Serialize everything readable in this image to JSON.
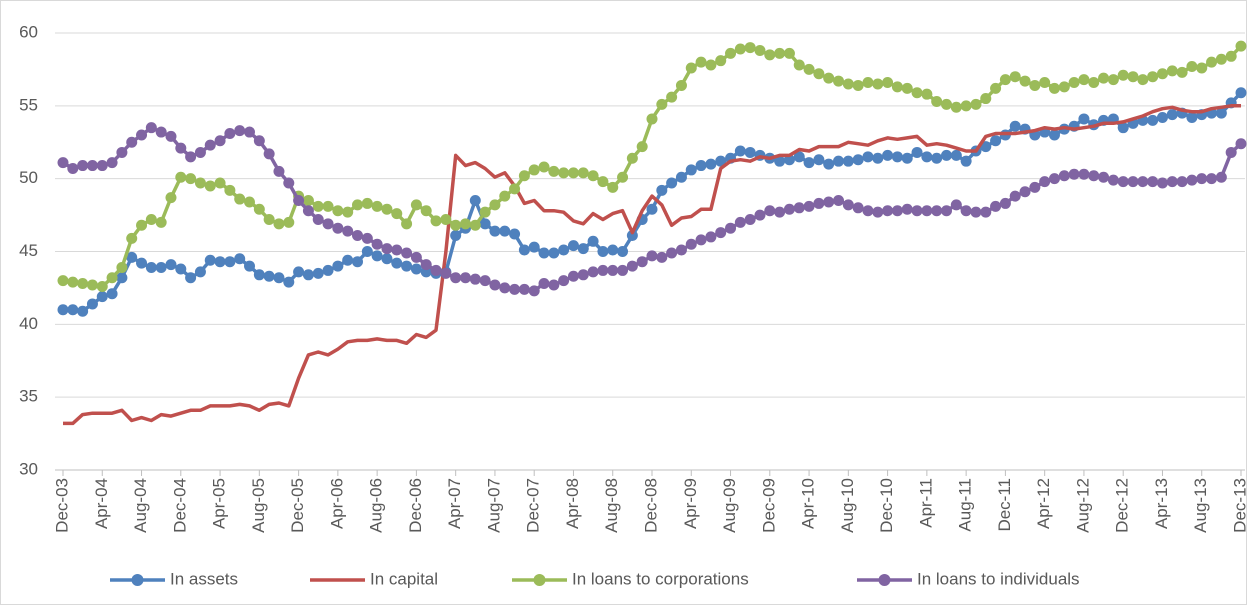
{
  "chart_data": {
    "type": "line",
    "categories": [
      "Dec-03",
      null,
      null,
      null,
      "Apr-04",
      null,
      null,
      null,
      "Aug-04",
      null,
      null,
      null,
      "Dec-04",
      null,
      null,
      null,
      "Apr-05",
      null,
      null,
      null,
      "Aug-05",
      null,
      null,
      null,
      "Dec-05",
      null,
      null,
      null,
      "Apr-06",
      null,
      null,
      null,
      "Aug-06",
      null,
      null,
      null,
      "Dec-06",
      null,
      null,
      null,
      "Apr-07",
      null,
      null,
      null,
      "Aug-07",
      null,
      null,
      null,
      "Dec-07",
      null,
      null,
      null,
      "Apr-08",
      null,
      null,
      null,
      "Aug-08",
      null,
      null,
      null,
      "Dec-08",
      null,
      null,
      null,
      "Apr-09",
      null,
      null,
      null,
      "Aug-09",
      null,
      null,
      null,
      "Dec-09",
      null,
      null,
      null,
      "Apr-10",
      null,
      null,
      null,
      "Aug-10",
      null,
      null,
      null,
      "Dec-10",
      null,
      null,
      null,
      "Apr-11",
      null,
      null,
      null,
      "Aug-11",
      null,
      null,
      null,
      "Dec-11",
      null,
      null,
      null,
      "Apr-12",
      null,
      null,
      null,
      "Aug-12",
      null,
      null,
      null,
      "Dec-12",
      null,
      null,
      null,
      "Apr-13",
      null,
      null,
      null,
      "Aug-13",
      null,
      null,
      null,
      "Dec-13"
    ],
    "series": [
      {
        "name": "In assets",
        "color": "#4f81bd",
        "markers": true,
        "values": [
          41.0,
          41.0,
          40.9,
          41.4,
          41.9,
          42.1,
          43.2,
          44.6,
          44.2,
          43.9,
          43.9,
          44.1,
          43.8,
          43.2,
          43.6,
          44.4,
          44.3,
          44.3,
          44.5,
          44.0,
          43.4,
          43.3,
          43.2,
          42.9,
          43.6,
          43.4,
          43.5,
          43.7,
          44.0,
          44.4,
          44.3,
          45.0,
          44.7,
          44.5,
          44.2,
          44.0,
          43.8,
          43.6,
          43.5,
          43.6,
          46.1,
          46.6,
          48.5,
          46.9,
          46.4,
          46.4,
          46.2,
          45.1,
          45.3,
          44.9,
          44.9,
          45.1,
          45.4,
          45.2,
          45.7,
          45.0,
          45.1,
          45.0,
          46.1,
          47.2,
          47.9,
          49.2,
          49.7,
          50.1,
          50.6,
          50.9,
          51.0,
          51.2,
          51.4,
          51.9,
          51.8,
          51.6,
          51.4,
          51.2,
          51.3,
          51.5,
          51.1,
          51.3,
          51.0,
          51.2,
          51.2,
          51.3,
          51.5,
          51.4,
          51.6,
          51.5,
          51.4,
          51.8,
          51.5,
          51.4,
          51.6,
          51.6,
          51.2,
          51.9,
          52.2,
          52.6,
          53.0,
          53.6,
          53.4,
          53.0,
          53.2,
          53.0,
          53.4,
          53.6,
          54.1,
          53.7,
          54.0,
          54.1,
          53.5,
          53.8,
          54.0,
          54.0,
          54.2,
          54.4,
          54.5,
          54.2,
          54.4,
          54.5,
          54.5,
          55.2,
          55.9
        ]
      },
      {
        "name": "In capital",
        "color": "#c0504d",
        "markers": false,
        "values": [
          33.2,
          33.2,
          33.8,
          33.9,
          33.9,
          33.9,
          34.1,
          33.4,
          33.6,
          33.4,
          33.8,
          33.7,
          33.9,
          34.1,
          34.1,
          34.4,
          34.4,
          34.4,
          34.5,
          34.4,
          34.1,
          34.5,
          34.6,
          34.4,
          36.3,
          37.9,
          38.1,
          37.9,
          38.3,
          38.8,
          38.9,
          38.9,
          39.0,
          38.9,
          38.9,
          38.7,
          39.3,
          39.1,
          39.6,
          45.0,
          51.6,
          50.9,
          51.1,
          50.7,
          50.1,
          50.4,
          49.5,
          48.3,
          48.5,
          47.8,
          47.8,
          47.7,
          47.1,
          46.9,
          47.6,
          47.2,
          47.6,
          47.8,
          46.3,
          47.8,
          48.8,
          48.2,
          46.8,
          47.3,
          47.4,
          47.9,
          47.9,
          50.7,
          51.2,
          51.3,
          51.2,
          51.5,
          51.4,
          51.6,
          51.6,
          52.0,
          51.9,
          52.2,
          52.2,
          52.2,
          52.5,
          52.4,
          52.3,
          52.6,
          52.8,
          52.7,
          52.8,
          52.9,
          52.3,
          52.4,
          52.3,
          52.1,
          51.9,
          51.9,
          52.9,
          53.1,
          53.1,
          53.1,
          53.2,
          53.3,
          53.5,
          53.4,
          53.5,
          53.4,
          53.5,
          53.6,
          53.8,
          53.8,
          53.9,
          54.1,
          54.3,
          54.6,
          54.8,
          54.9,
          54.7,
          54.6,
          54.6,
          54.8,
          54.9,
          55.0,
          55.0
        ]
      },
      {
        "name": "In loans to corporations",
        "color": "#9bbb59",
        "markers": true,
        "values": [
          43.0,
          42.9,
          42.8,
          42.7,
          42.6,
          43.2,
          43.9,
          45.9,
          46.8,
          47.2,
          47.0,
          48.7,
          50.1,
          50.0,
          49.7,
          49.5,
          49.7,
          49.2,
          48.6,
          48.4,
          47.9,
          47.2,
          46.9,
          47.0,
          48.8,
          48.5,
          48.1,
          48.1,
          47.8,
          47.7,
          48.2,
          48.3,
          48.1,
          47.9,
          47.6,
          46.9,
          48.2,
          47.8,
          47.1,
          47.2,
          46.8,
          46.9,
          46.8,
          47.7,
          48.2,
          48.8,
          49.3,
          50.2,
          50.6,
          50.8,
          50.5,
          50.4,
          50.4,
          50.4,
          50.2,
          49.8,
          49.4,
          50.1,
          51.4,
          52.2,
          54.1,
          55.1,
          55.6,
          56.4,
          57.6,
          58.0,
          57.8,
          58.1,
          58.6,
          58.9,
          59.0,
          58.8,
          58.5,
          58.6,
          58.6,
          57.8,
          57.5,
          57.2,
          56.9,
          56.7,
          56.5,
          56.4,
          56.6,
          56.5,
          56.6,
          56.3,
          56.2,
          55.9,
          55.8,
          55.3,
          55.1,
          54.9,
          55.0,
          55.1,
          55.5,
          56.2,
          56.8,
          57.0,
          56.7,
          56.4,
          56.6,
          56.2,
          56.3,
          56.6,
          56.8,
          56.6,
          56.9,
          56.8,
          57.1,
          57.0,
          56.8,
          57.0,
          57.2,
          57.4,
          57.3,
          57.7,
          57.6,
          58.0,
          58.2,
          58.4,
          59.1
        ]
      },
      {
        "name": "In loans to individuals",
        "color": "#8064a2",
        "markers": true,
        "values": [
          51.1,
          50.7,
          50.9,
          50.9,
          50.9,
          51.1,
          51.8,
          52.5,
          53.0,
          53.5,
          53.2,
          52.9,
          52.1,
          51.5,
          51.8,
          52.3,
          52.6,
          53.1,
          53.3,
          53.2,
          52.6,
          51.7,
          50.5,
          49.7,
          48.5,
          47.8,
          47.2,
          46.9,
          46.6,
          46.4,
          46.1,
          45.9,
          45.5,
          45.2,
          45.1,
          44.9,
          44.6,
          44.1,
          43.7,
          43.5,
          43.2,
          43.2,
          43.1,
          43.0,
          42.7,
          42.5,
          42.4,
          42.4,
          42.3,
          42.8,
          42.7,
          43.0,
          43.3,
          43.4,
          43.6,
          43.7,
          43.7,
          43.7,
          44.0,
          44.3,
          44.7,
          44.6,
          44.9,
          45.1,
          45.5,
          45.8,
          46.0,
          46.3,
          46.6,
          47.0,
          47.2,
          47.5,
          47.8,
          47.7,
          47.9,
          48.0,
          48.1,
          48.3,
          48.4,
          48.5,
          48.2,
          48.0,
          47.8,
          47.7,
          47.8,
          47.8,
          47.9,
          47.8,
          47.8,
          47.8,
          47.8,
          48.2,
          47.8,
          47.7,
          47.7,
          48.1,
          48.3,
          48.8,
          49.1,
          49.4,
          49.8,
          50.0,
          50.2,
          50.3,
          50.3,
          50.2,
          50.1,
          49.9,
          49.8,
          49.8,
          49.8,
          49.8,
          49.7,
          49.8,
          49.8,
          49.9,
          50.0,
          50.0,
          50.1,
          51.8,
          52.4
        ]
      }
    ],
    "ylim": [
      30,
      60
    ],
    "yticks": [
      30,
      35,
      40,
      45,
      50,
      55,
      60
    ],
    "grid": true,
    "legend": "bottom"
  }
}
